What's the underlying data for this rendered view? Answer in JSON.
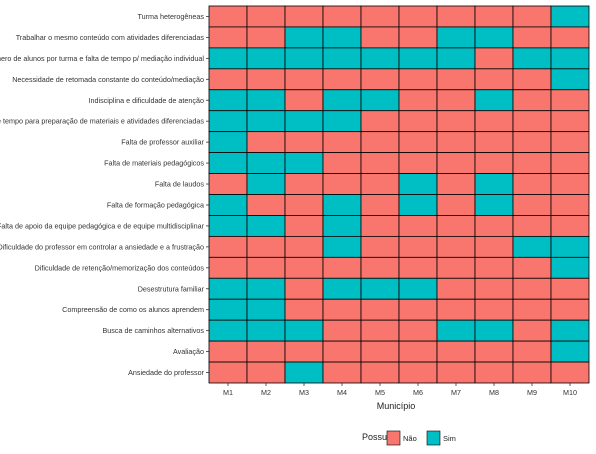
{
  "chart_data": {
    "type": "heatmap",
    "xlabel": "Município",
    "ylabel": "",
    "x": [
      "M1",
      "M2",
      "M3",
      "M4",
      "M5",
      "M6",
      "M7",
      "M8",
      "M9",
      "M10"
    ],
    "y": [
      "Turma heterogêneas",
      "Trabalhar o mesmo conteúdo com atividades diferenciadas",
      "Número de alunos por turma e falta de tempo p/ mediação individual",
      "Necessidade de retomada constante do conteúdo/mediação",
      "Indisciplina e dificuldade de atenção",
      "Falta de tempo para preparação de materiais e atividades diferenciadas",
      "Falta de professor auxiliar",
      "Falta de materiais pedagógicos",
      "Falta de laudos",
      "Falta de formação pedagógica",
      "Falta de apoio da equipe pedagógica e de equipe multidisciplinar",
      "Dificuldade do professor em controlar a ansiedade e a frustração",
      "Dificuldade de retenção/memorização dos conteúdos",
      "Desestrutura familiar",
      "Compreensão de como os alunos aprendem",
      "Busca de caminhos alternativos",
      "Avaliação",
      "Ansiedade do professor"
    ],
    "values": [
      [
        "Não",
        "Não",
        "Não",
        "Não",
        "Não",
        "Não",
        "Não",
        "Não",
        "Não",
        "Sim"
      ],
      [
        "Não",
        "Não",
        "Sim",
        "Sim",
        "Não",
        "Não",
        "Sim",
        "Sim",
        "Não",
        "Não"
      ],
      [
        "Sim",
        "Sim",
        "Sim",
        "Sim",
        "Sim",
        "Sim",
        "Sim",
        "Não",
        "Sim",
        "Sim"
      ],
      [
        "Não",
        "Não",
        "Não",
        "Não",
        "Não",
        "Não",
        "Não",
        "Não",
        "Não",
        "Sim"
      ],
      [
        "Sim",
        "Sim",
        "Não",
        "Sim",
        "Sim",
        "Não",
        "Não",
        "Sim",
        "Não",
        "Não"
      ],
      [
        "Sim",
        "Sim",
        "Sim",
        "Sim",
        "Não",
        "Não",
        "Não",
        "Não",
        "Não",
        "Não"
      ],
      [
        "Sim",
        "Não",
        "Não",
        "Não",
        "Não",
        "Não",
        "Não",
        "Não",
        "Não",
        "Não"
      ],
      [
        "Sim",
        "Sim",
        "Sim",
        "Não",
        "Não",
        "Não",
        "Não",
        "Não",
        "Não",
        "Não"
      ],
      [
        "Não",
        "Sim",
        "Não",
        "Não",
        "Não",
        "Sim",
        "Não",
        "Sim",
        "Não",
        "Não"
      ],
      [
        "Sim",
        "Não",
        "Não",
        "Sim",
        "Não",
        "Sim",
        "Não",
        "Sim",
        "Não",
        "Não"
      ],
      [
        "Sim",
        "Sim",
        "Não",
        "Sim",
        "Não",
        "Não",
        "Não",
        "Não",
        "Não",
        "Não"
      ],
      [
        "Não",
        "Não",
        "Não",
        "Sim",
        "Não",
        "Não",
        "Não",
        "Não",
        "Sim",
        "Sim"
      ],
      [
        "Não",
        "Não",
        "Não",
        "Não",
        "Não",
        "Não",
        "Não",
        "Não",
        "Não",
        "Sim"
      ],
      [
        "Sim",
        "Sim",
        "Não",
        "Sim",
        "Sim",
        "Sim",
        "Não",
        "Não",
        "Não",
        "Não"
      ],
      [
        "Sim",
        "Sim",
        "Não",
        "Não",
        "Não",
        "Não",
        "Não",
        "Não",
        "Não",
        "Não"
      ],
      [
        "Sim",
        "Sim",
        "Sim",
        "Não",
        "Não",
        "Não",
        "Sim",
        "Sim",
        "Não",
        "Sim"
      ],
      [
        "Não",
        "Não",
        "Não",
        "Não",
        "Não",
        "Não",
        "Não",
        "Não",
        "Não",
        "Sim"
      ],
      [
        "Não",
        "Não",
        "Sim",
        "Não",
        "Não",
        "Não",
        "Não",
        "Não",
        "Não",
        "Não"
      ]
    ],
    "legend": {
      "title": "Possui",
      "position": "bottom",
      "entries": [
        {
          "label": "Não",
          "color": "#F8766D"
        },
        {
          "label": "Sim",
          "color": "#00BFC4"
        }
      ]
    },
    "grid": false
  }
}
